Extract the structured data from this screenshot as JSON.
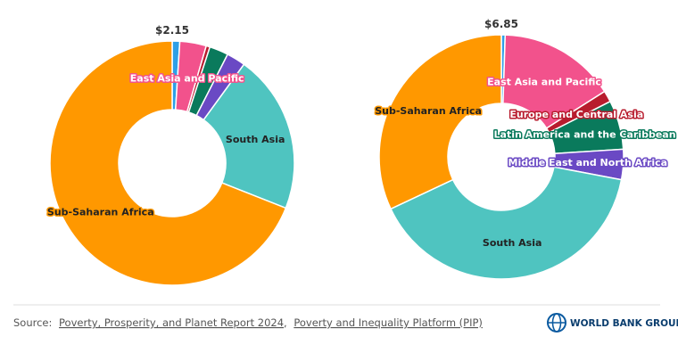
{
  "chart_data": [
    {
      "type": "pie",
      "title": "$2.15",
      "categories": [
        null,
        "East Asia and Pacific",
        null,
        null,
        null,
        "South Asia",
        "Sub-Saharan Africa"
      ],
      "values": [
        1,
        3.5,
        0.5,
        2.5,
        2.5,
        21,
        69
      ],
      "colors": [
        "#2e9fe6",
        "#f2528c",
        "#b81c2e",
        "#0a7a5c",
        "#6a49c4",
        "#4fc4c0",
        "#ff9800"
      ]
    },
    {
      "type": "pie",
      "title": "$6.85",
      "categories": [
        null,
        "East Asia and Pacific",
        "Europe and Central Asia",
        "Latin America and the Caribbean",
        "Middle East and North Africa",
        "South Asia",
        "Sub-Saharan Africa"
      ],
      "values": [
        0.5,
        15.5,
        1.5,
        6.5,
        4,
        40,
        32
      ],
      "colors": [
        "#2e9fe6",
        "#f2528c",
        "#b81c2e",
        "#0a7a5c",
        "#6a49c4",
        "#4fc4c0",
        "#ff9800"
      ]
    }
  ],
  "source": {
    "label": "Source:",
    "links": [
      "Poverty, Prosperity, and Planet Report 2024",
      "Poverty and Inequality Platform (PIP)"
    ],
    "separator": ","
  },
  "logo": "WORLD BANK GROUP"
}
